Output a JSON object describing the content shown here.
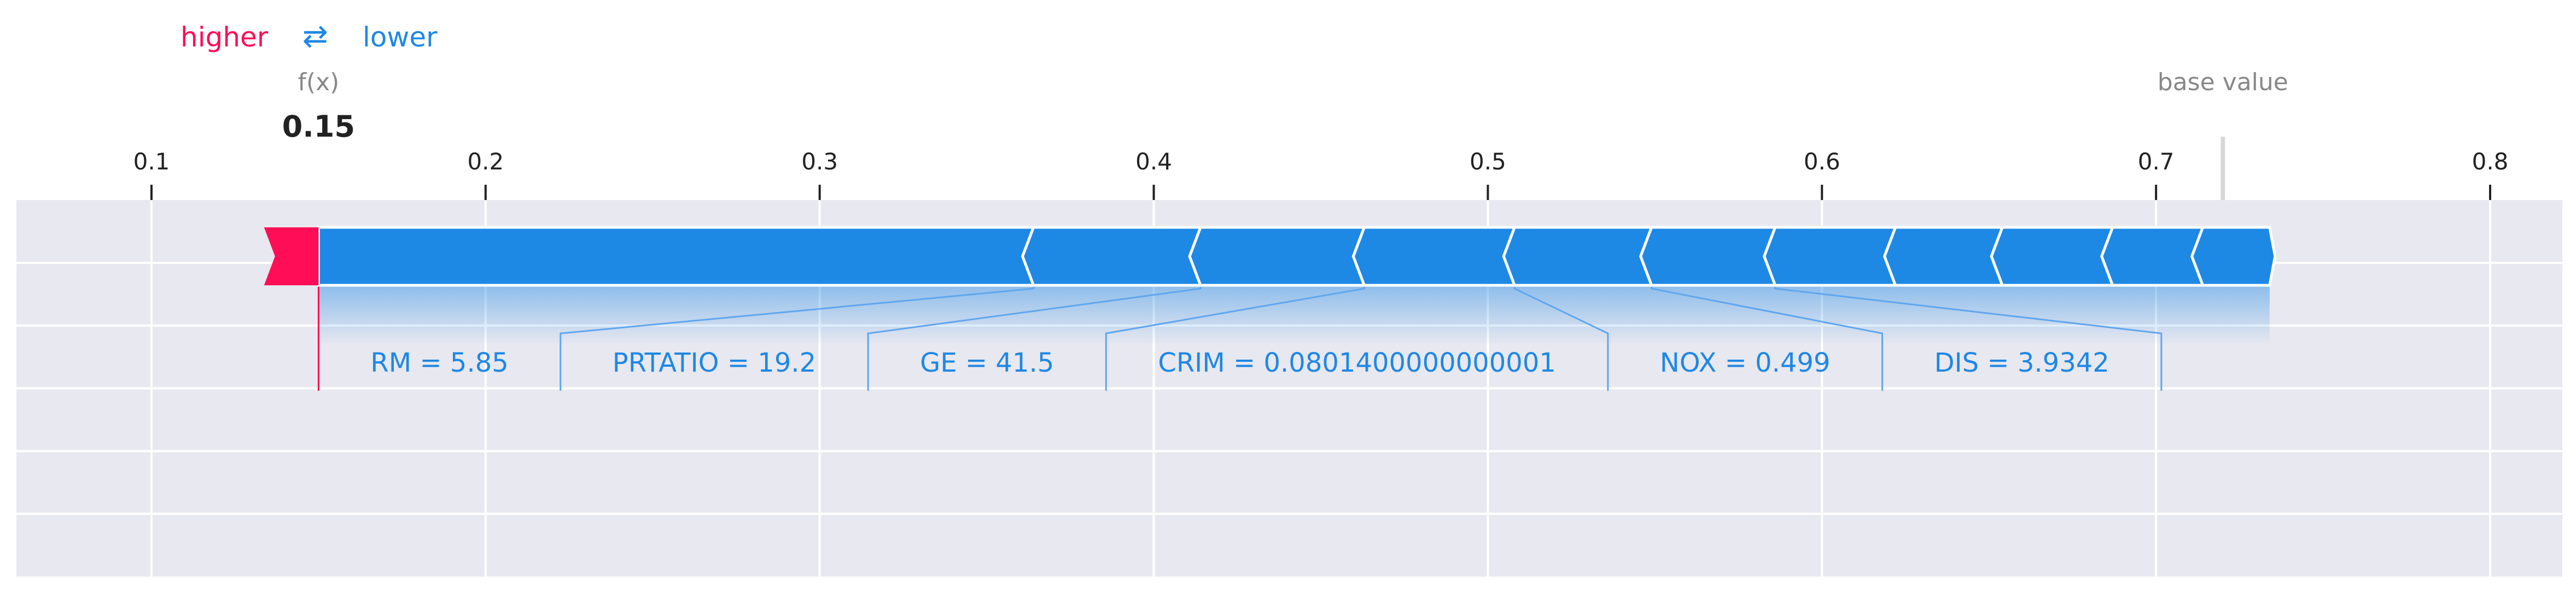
{
  "legend": {
    "higher_label": "higher",
    "arrows_glyph": "⇄",
    "lower_label": "lower",
    "higher_color": "#ff0d57",
    "lower_color": "#1e88e5"
  },
  "fx_label": "f(x)",
  "fx_value_label": "0.15",
  "base_value_label": "base value",
  "chart_data": {
    "type": "force",
    "title": "",
    "xlabel": "",
    "ylabel": "",
    "xlim": [
      0.06,
      0.82
    ],
    "xticks": [
      0.1,
      0.2,
      0.3,
      0.4,
      0.5,
      0.6,
      0.7,
      0.8
    ],
    "xtick_labels": [
      "0.1",
      "0.2",
      "0.3",
      "0.4",
      "0.5",
      "0.6",
      "0.7",
      "0.8"
    ],
    "output_value": 0.15,
    "base_value": 0.72,
    "grid": true,
    "background_color": "#e8e8f0",
    "positive_color": "#ff0d57",
    "negative_color": "#1e88e5",
    "positive_segment": [
      0.135,
      0.15
    ],
    "negative_boundaries": [
      0.15,
      0.364,
      0.414,
      0.463,
      0.508,
      0.549,
      0.586,
      0.622,
      0.654,
      0.687,
      0.714,
      0.734
    ],
    "feature_labels": [
      {
        "text": "RM = 5.85",
        "start": 0.15,
        "end": 0.364
      },
      {
        "text": "PRTATIO = 19.2",
        "start": 0.364,
        "end": 0.414
      },
      {
        "text": "GE = 41.5",
        "start": 0.414,
        "end": 0.463
      },
      {
        "text": "CRIM = 0.0801400000000001",
        "start": 0.463,
        "end": 0.508
      },
      {
        "text": "NOX = 0.499",
        "start": 0.508,
        "end": 0.549
      },
      {
        "text": "DIS = 3.9342",
        "start": 0.549,
        "end": 0.586
      }
    ]
  }
}
